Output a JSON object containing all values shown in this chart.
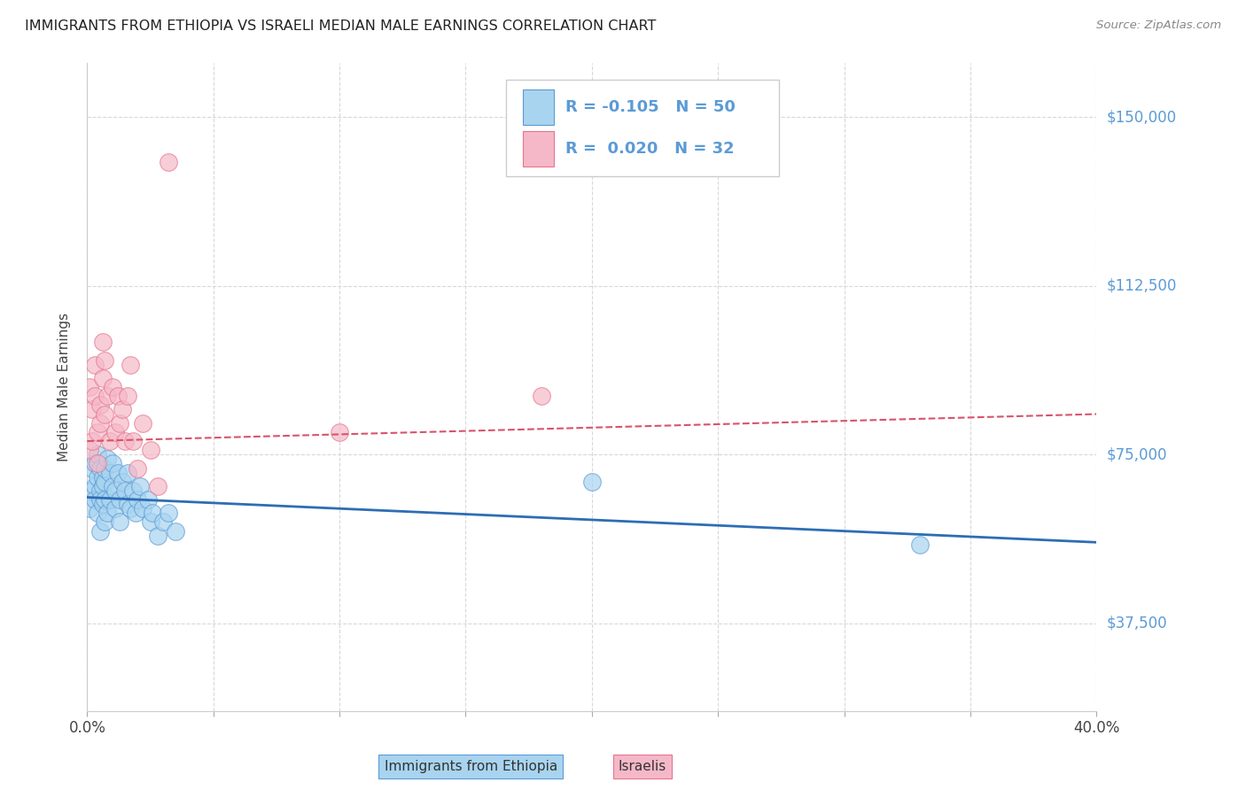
{
  "title": "IMMIGRANTS FROM ETHIOPIA VS ISRAELI MEDIAN MALE EARNINGS CORRELATION CHART",
  "source": "Source: ZipAtlas.com",
  "ylabel": "Median Male Earnings",
  "xlim": [
    0.0,
    0.4
  ],
  "ylim": [
    18000,
    162000
  ],
  "xticks": [
    0.0,
    0.05,
    0.1,
    0.15,
    0.2,
    0.25,
    0.3,
    0.35,
    0.4
  ],
  "xticklabels": [
    "0.0%",
    "",
    "",
    "",
    "",
    "",
    "",
    "",
    "40.0%"
  ],
  "ytick_positions": [
    37500,
    75000,
    112500,
    150000
  ],
  "ytick_labels": [
    "$37,500",
    "$75,000",
    "$112,500",
    "$150,000"
  ],
  "legend_r1_val": "-0.105",
  "legend_n1_val": "50",
  "legend_r2_val": "0.020",
  "legend_n2_val": "32",
  "color_blue_fill": "#a8d4f0",
  "color_pink_fill": "#f5b8c8",
  "color_blue_edge": "#5b9bd5",
  "color_pink_edge": "#e8748a",
  "color_blue_line": "#2e6db4",
  "color_pink_line": "#d9536a",
  "background_color": "#ffffff",
  "grid_color": "#d8d8d8",
  "blue_points_x": [
    0.001,
    0.002,
    0.002,
    0.003,
    0.003,
    0.003,
    0.004,
    0.004,
    0.004,
    0.005,
    0.005,
    0.005,
    0.005,
    0.006,
    0.006,
    0.006,
    0.007,
    0.007,
    0.007,
    0.007,
    0.008,
    0.008,
    0.009,
    0.009,
    0.01,
    0.01,
    0.011,
    0.011,
    0.012,
    0.013,
    0.013,
    0.014,
    0.015,
    0.016,
    0.016,
    0.017,
    0.018,
    0.019,
    0.02,
    0.021,
    0.022,
    0.024,
    0.025,
    0.026,
    0.028,
    0.03,
    0.032,
    0.035,
    0.2,
    0.33
  ],
  "blue_points_y": [
    63000,
    72000,
    67000,
    68000,
    73000,
    65000,
    70000,
    62000,
    75000,
    67000,
    72000,
    65000,
    58000,
    70000,
    64000,
    68000,
    69000,
    65000,
    72000,
    60000,
    74000,
    62000,
    71000,
    65000,
    68000,
    73000,
    63000,
    67000,
    71000,
    65000,
    60000,
    69000,
    67000,
    71000,
    64000,
    63000,
    67000,
    62000,
    65000,
    68000,
    63000,
    65000,
    60000,
    62000,
    57000,
    60000,
    62000,
    58000,
    69000,
    55000
  ],
  "pink_points_x": [
    0.001,
    0.001,
    0.002,
    0.002,
    0.003,
    0.003,
    0.004,
    0.004,
    0.005,
    0.005,
    0.006,
    0.006,
    0.007,
    0.007,
    0.008,
    0.009,
    0.01,
    0.011,
    0.012,
    0.013,
    0.014,
    0.015,
    0.016,
    0.017,
    0.018,
    0.02,
    0.022,
    0.025,
    0.028,
    0.032,
    0.1,
    0.18
  ],
  "pink_points_y": [
    76000,
    90000,
    85000,
    78000,
    88000,
    95000,
    80000,
    73000,
    86000,
    82000,
    100000,
    92000,
    84000,
    96000,
    88000,
    78000,
    90000,
    80000,
    88000,
    82000,
    85000,
    78000,
    88000,
    95000,
    78000,
    72000,
    82000,
    76000,
    68000,
    140000,
    80000,
    88000
  ],
  "blue_line_x": [
    0.0,
    0.4
  ],
  "blue_line_y": [
    65500,
    55500
  ],
  "pink_line_x": [
    0.0,
    0.4
  ],
  "pink_line_y": [
    78000,
    84000
  ]
}
